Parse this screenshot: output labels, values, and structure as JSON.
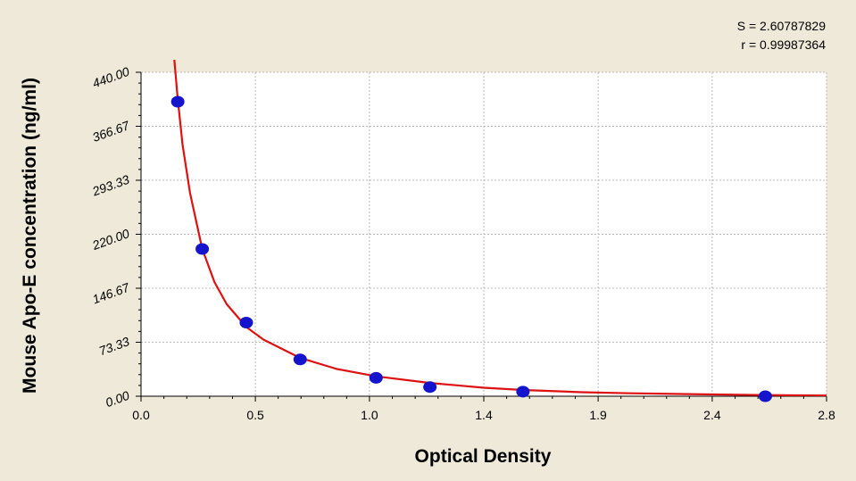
{
  "stats": {
    "s_label": "S = 2.60787829",
    "r_label": "r = 0.99987364"
  },
  "chart_data": {
    "type": "scatter",
    "title": "",
    "xlabel": "Optical Density",
    "ylabel": "Mouse Apo-E concentration (ng/ml)",
    "xlim": [
      0.0,
      2.8
    ],
    "ylim": [
      0.0,
      440.0
    ],
    "x_ticks": [
      "0.0",
      "0.5",
      "1.0",
      "1.4",
      "1.9",
      "2.4",
      "2.8"
    ],
    "x_tick_values": [
      0.0,
      0.467,
      0.933,
      1.4,
      1.867,
      2.333,
      2.8
    ],
    "y_ticks": [
      "0.00",
      "73.33",
      "146.67",
      "220.00",
      "293.33",
      "366.67",
      "440.00"
    ],
    "y_tick_values": [
      0.0,
      73.33,
      146.67,
      220.0,
      293.33,
      366.67,
      440.0
    ],
    "grid": true,
    "series": [
      {
        "kind": "points",
        "color": "#1414cc",
        "x": [
          0.15,
          0.25,
          0.43,
          0.65,
          0.96,
          1.18,
          1.56,
          2.55
        ],
        "y": [
          400,
          200,
          100,
          50,
          25,
          12.5,
          6.25,
          0
        ]
      },
      {
        "kind": "fit-curve",
        "color": "#dd1111",
        "x": [
          0.136,
          0.15,
          0.17,
          0.2,
          0.25,
          0.3,
          0.35,
          0.43,
          0.5,
          0.65,
          0.8,
          0.96,
          1.18,
          1.4,
          1.56,
          1.8,
          2.0,
          2.3,
          2.55,
          2.8
        ],
        "y": [
          457,
          404,
          341,
          276,
          200,
          155,
          125,
          94,
          77,
          52,
          37,
          27,
          18,
          11.5,
          8.5,
          5.5,
          4,
          2.6,
          1.6,
          1
        ]
      }
    ]
  }
}
